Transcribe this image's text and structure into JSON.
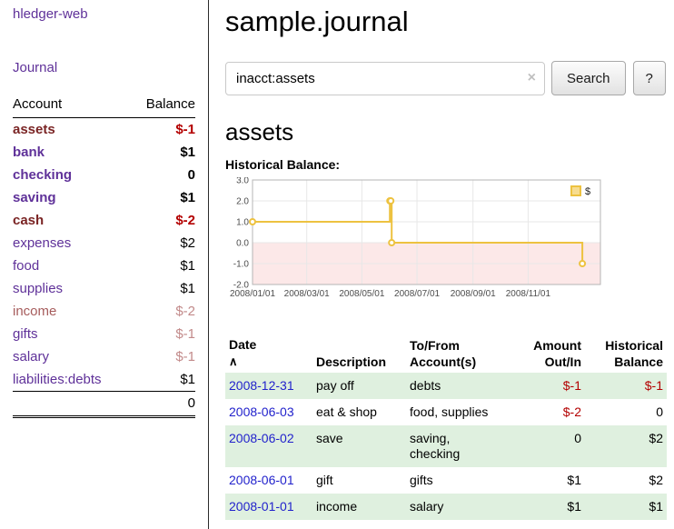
{
  "app": {
    "title": "hledger-web",
    "nav_journal": "Journal"
  },
  "colors": {
    "sidebar_link_purple": "#5f3199",
    "negative_red": "#b30000",
    "negative_dark_name": "#7a2424",
    "negative_faded": "#c28a8a",
    "date_link_blue": "#2222cc",
    "row_shade_green": "#dff0df",
    "chart_series_gold": "#edc240",
    "chart_negative_region_pink": "#fce8e8"
  },
  "sidebar": {
    "table_headers": {
      "account": "Account",
      "balance": "Balance"
    },
    "accounts": [
      {
        "name": "assets",
        "indent": 1,
        "balance": "$-1"
      },
      {
        "name": "bank",
        "indent": 2,
        "balance": "$1"
      },
      {
        "name": "checking",
        "indent": 3,
        "balance": "0"
      },
      {
        "name": "saving",
        "indent": 3,
        "balance": "$1"
      },
      {
        "name": "cash",
        "indent": 2,
        "balance": "$-2"
      },
      {
        "name": "expenses",
        "indent": 1,
        "balance": "$2"
      },
      {
        "name": "food",
        "indent": 2,
        "balance": "$1"
      },
      {
        "name": "supplies",
        "indent": 2,
        "balance": "$1"
      },
      {
        "name": "income",
        "indent": 1,
        "balance": "$-2"
      },
      {
        "name": "gifts",
        "indent": 2,
        "balance": "$-1"
      },
      {
        "name": "salary",
        "indent": 2,
        "balance": "$-1"
      },
      {
        "name": "liabilities:debts",
        "indent": 0,
        "balance": "$1"
      }
    ],
    "total": "0"
  },
  "header": {
    "title": "sample.journal"
  },
  "search": {
    "value": "inacct:assets",
    "clear_label": "×",
    "button": "Search",
    "help_button": "?"
  },
  "register": {
    "heading": "assets",
    "chart_label": "Historical Balance:"
  },
  "chart_data": {
    "type": "line",
    "step": true,
    "title": "Historical Balance:",
    "series": [
      {
        "name": "$",
        "color": "#edc240",
        "points": [
          [
            "2008-01-01",
            1
          ],
          [
            "2008-06-01",
            2
          ],
          [
            "2008-06-02",
            2
          ],
          [
            "2008-06-03",
            0
          ],
          [
            "2008-12-31",
            -1
          ]
        ]
      }
    ],
    "x_domain": [
      "2008-01-01",
      "2009-01-20"
    ],
    "x_ticks": [
      [
        "2008-01-01",
        "2008/01/01"
      ],
      [
        "2008-03-01",
        "2008/03/01"
      ],
      [
        "2008-05-01",
        "2008/05/01"
      ],
      [
        "2008-07-01",
        "2008/07/01"
      ],
      [
        "2008-09-01",
        "2008/09/01"
      ],
      [
        "2008-11-01",
        "2008/11/01"
      ]
    ],
    "y_ticks": [
      3.0,
      2.0,
      1.0,
      0.0,
      -1.0,
      -2.0
    ],
    "ylim": [
      -2,
      3
    ],
    "grid": true,
    "legend": {
      "label": "$",
      "position": "top-right"
    },
    "negative_region_color": "#fce8e8"
  },
  "register_table": {
    "headers": {
      "date": "Date",
      "sort_icon": "∧",
      "description": "Description",
      "account": "To/From\nAccount(s)",
      "amount": "Amount\nOut/In",
      "balance": "Historical\nBalance"
    },
    "rows": [
      {
        "date": "2008-12-31",
        "description": "pay off",
        "accounts": "debts",
        "amount": "$-1",
        "balance": "$-1"
      },
      {
        "date": "2008-06-03",
        "description": "eat & shop",
        "accounts": "food, supplies",
        "amount": "$-2",
        "balance": "0"
      },
      {
        "date": "2008-06-02",
        "description": "save",
        "accounts": "saving,\nchecking",
        "amount": "0",
        "balance": "$2"
      },
      {
        "date": "2008-06-01",
        "description": "gift",
        "accounts": "gifts",
        "amount": "$1",
        "balance": "$2"
      },
      {
        "date": "2008-01-01",
        "description": "income",
        "accounts": "salary",
        "amount": "$1",
        "balance": "$1"
      }
    ]
  }
}
